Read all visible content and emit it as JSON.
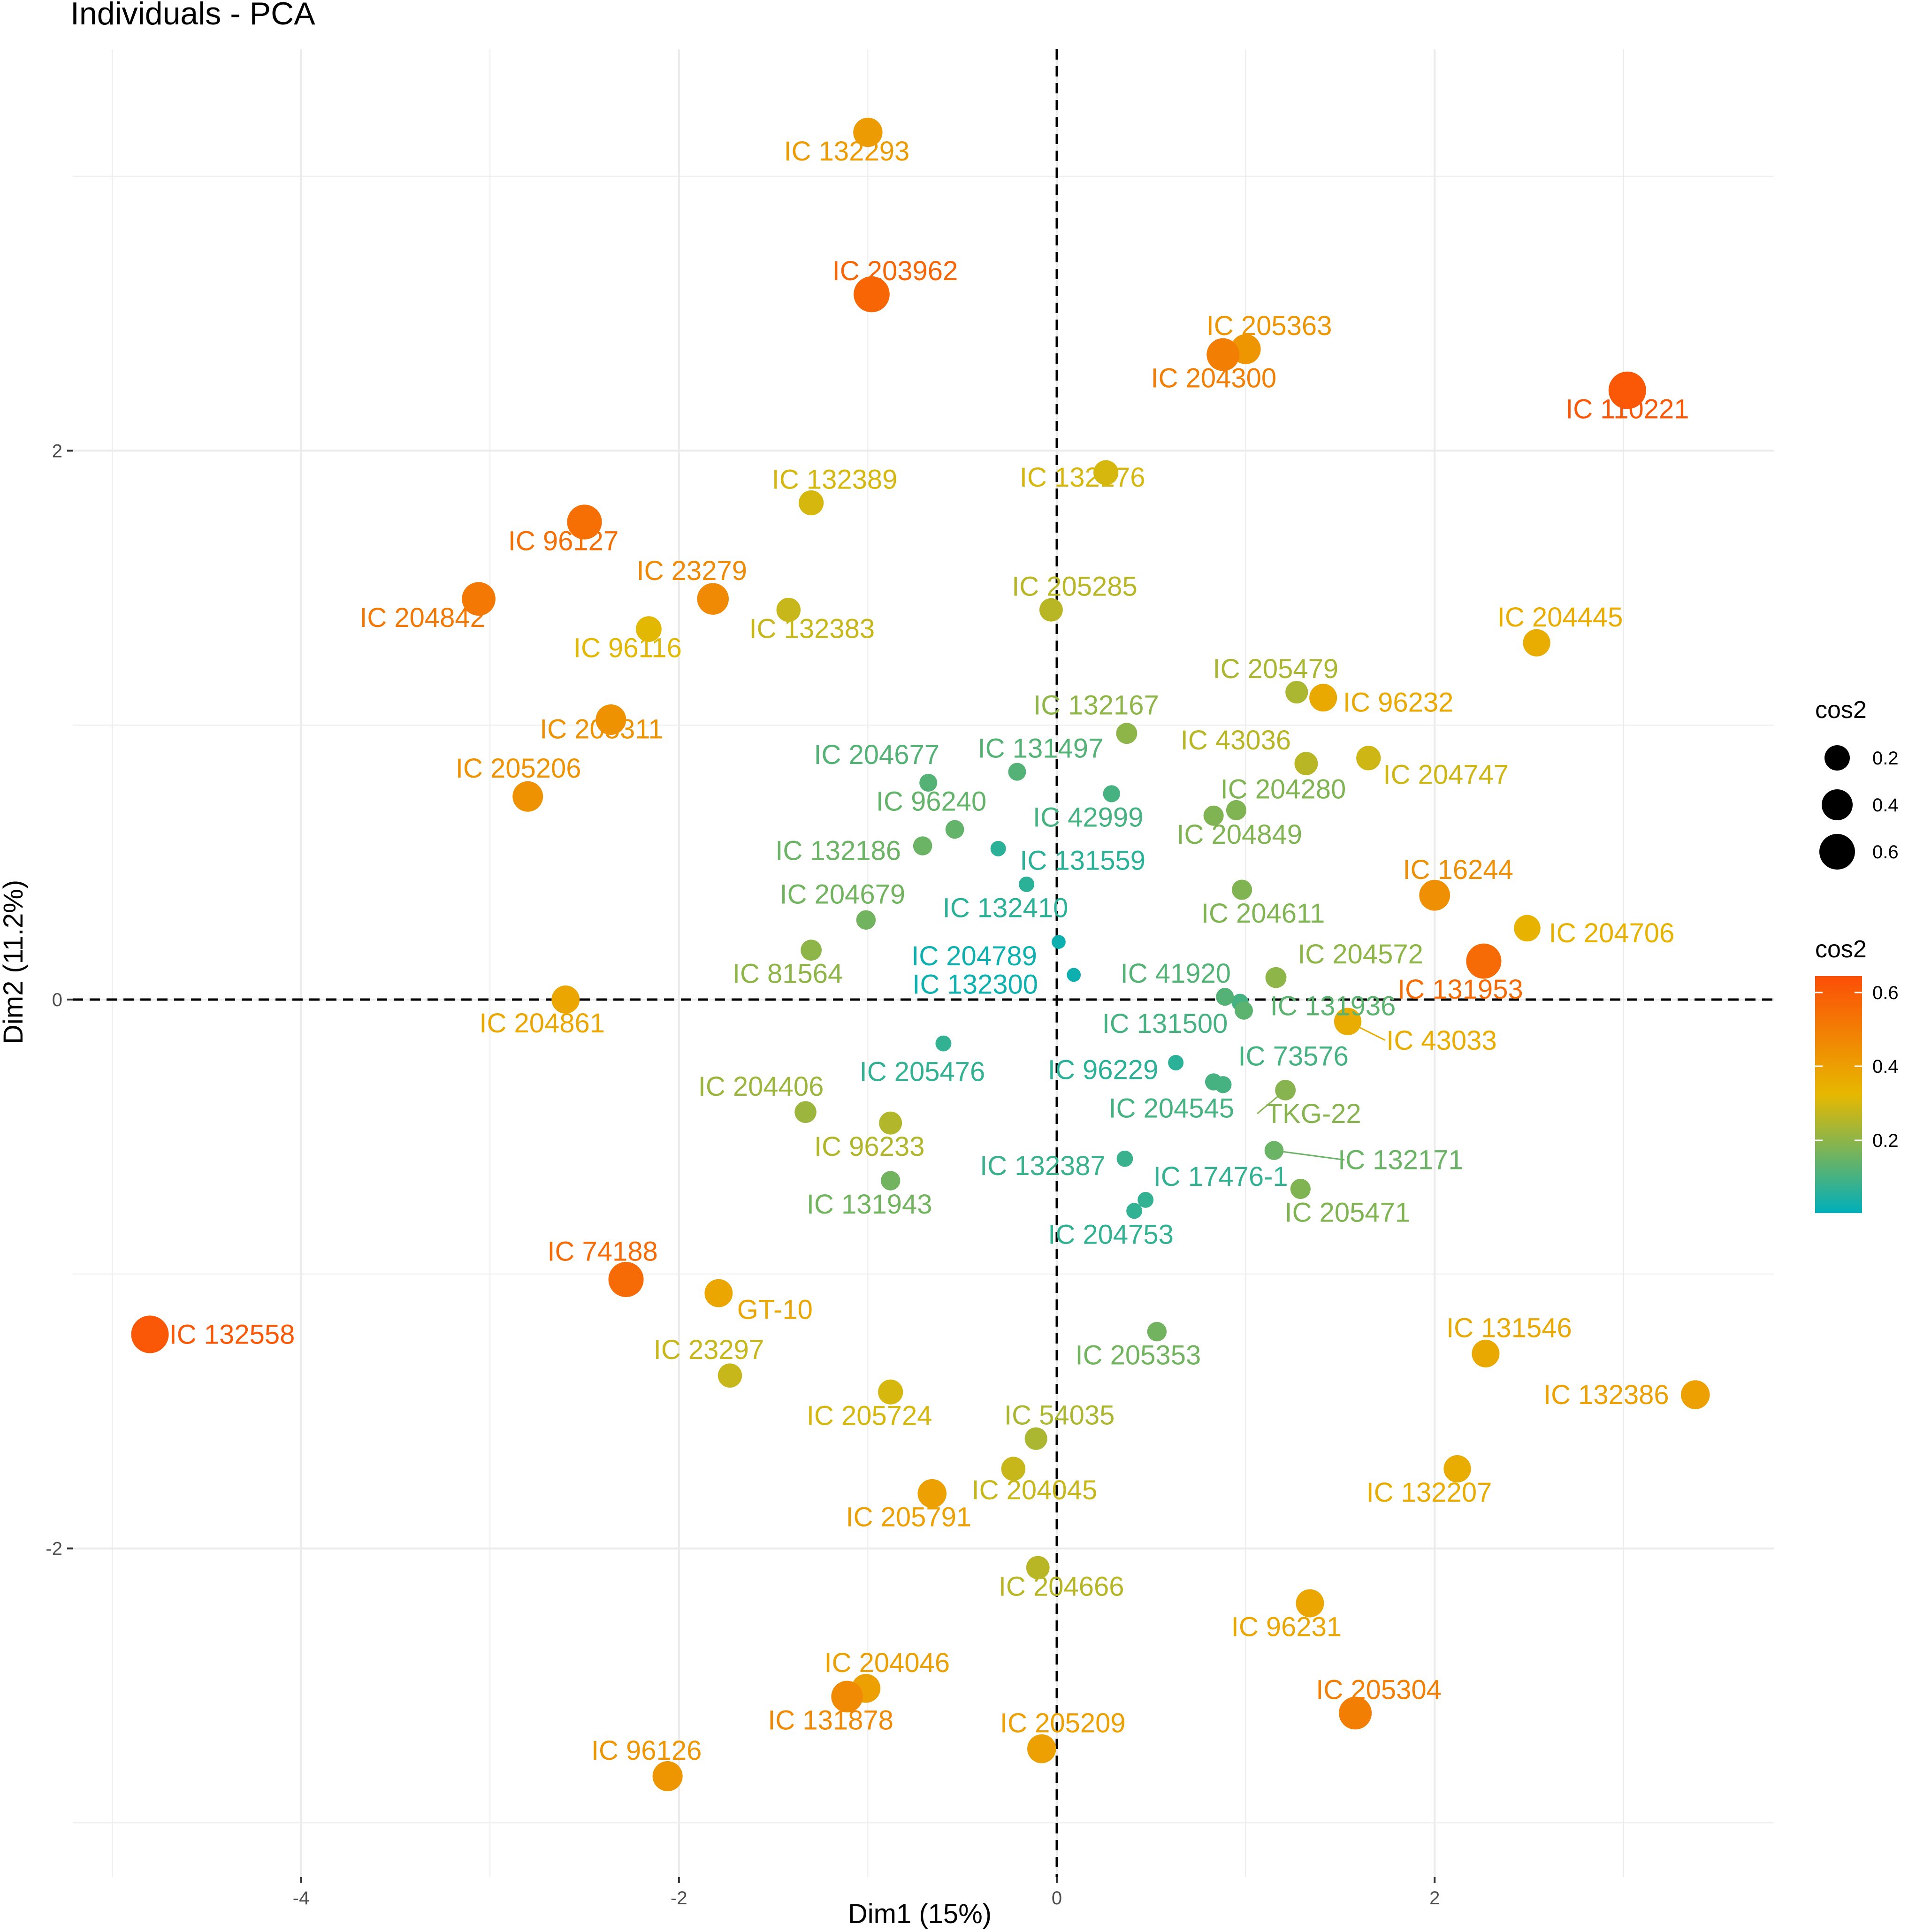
{
  "chart_data": {
    "type": "scatter",
    "title": "Individuals - PCA",
    "xlabel": "Dim1 (15%)",
    "ylabel": "Dim2 (11.2%)",
    "xlim": [
      -5.1,
      3.8
    ],
    "ylim": [
      -3.1,
      3.5
    ],
    "xticks": [
      -4,
      -2,
      0,
      2
    ],
    "yticks": [
      -2,
      0,
      2
    ],
    "grid": true,
    "reference_lines": {
      "x": 0,
      "y": 0,
      "style": "dashed"
    },
    "color_scale": {
      "variable": "cos2",
      "low": "#00AFBB",
      "mid": "#E7B800",
      "high": "#FC4E07",
      "range": [
        0,
        0.65
      ]
    },
    "legend": {
      "position": "right",
      "size_title": "cos2",
      "size_breaks": [
        "0.2",
        "0.4",
        "0.6"
      ],
      "color_title": "cos2",
      "color_breaks": [
        "0.6",
        "0.4",
        "0.2"
      ]
    },
    "points": [
      {
        "label": "IC 132293",
        "x": -1.0,
        "y": 3.16,
        "cos2": 0.41
      },
      {
        "label": "IC 203962",
        "x": -0.98,
        "y": 2.57,
        "cos2": 0.58
      },
      {
        "label": "IC 205363",
        "x": 1.0,
        "y": 2.37,
        "cos2": 0.43
      },
      {
        "label": "IC 204300",
        "x": 0.88,
        "y": 2.35,
        "cos2": 0.5
      },
      {
        "label": "IC 110221",
        "x": 3.02,
        "y": 2.22,
        "cos2": 0.62
      },
      {
        "label": "IC 132176",
        "x": 0.26,
        "y": 1.92,
        "cos2": 0.3
      },
      {
        "label": "IC 132389",
        "x": -1.3,
        "y": 1.81,
        "cos2": 0.3
      },
      {
        "label": "IC 96127",
        "x": -2.5,
        "y": 1.74,
        "cos2": 0.55
      },
      {
        "label": "IC 23279",
        "x": -1.82,
        "y": 1.46,
        "cos2": 0.47
      },
      {
        "label": "IC 204842",
        "x": -3.06,
        "y": 1.46,
        "cos2": 0.52
      },
      {
        "label": "IC 132383",
        "x": -1.42,
        "y": 1.42,
        "cos2": 0.28
      },
      {
        "label": "IC 205285",
        "x": -0.03,
        "y": 1.42,
        "cos2": 0.26
      },
      {
        "label": "IC 96116",
        "x": -2.16,
        "y": 1.35,
        "cos2": 0.32
      },
      {
        "label": "IC 204445",
        "x": 2.54,
        "y": 1.3,
        "cos2": 0.36
      },
      {
        "label": "IC 205479",
        "x": 1.27,
        "y": 1.12,
        "cos2": 0.24
      },
      {
        "label": "IC 96232",
        "x": 1.41,
        "y": 1.1,
        "cos2": 0.37
      },
      {
        "label": "IC 205311",
        "x": -2.36,
        "y": 1.02,
        "cos2": 0.44
      },
      {
        "label": "IC 132167",
        "x": 0.37,
        "y": 0.97,
        "cos2": 0.2
      },
      {
        "label": "IC 131497",
        "x": -0.21,
        "y": 0.83,
        "cos2": 0.12
      },
      {
        "label": "IC 204677",
        "x": -0.68,
        "y": 0.79,
        "cos2": 0.12
      },
      {
        "label": "IC 43036",
        "x": 1.32,
        "y": 0.86,
        "cos2": 0.26
      },
      {
        "label": "IC 204747",
        "x": 1.65,
        "y": 0.88,
        "cos2": 0.29
      },
      {
        "label": "IC 205206",
        "x": -2.8,
        "y": 0.74,
        "cos2": 0.44
      },
      {
        "label": "IC 42999",
        "x": 0.29,
        "y": 0.75,
        "cos2": 0.1
      },
      {
        "label": "IC 204280",
        "x": 0.95,
        "y": 0.69,
        "cos2": 0.18
      },
      {
        "label": "IC 204849",
        "x": 0.83,
        "y": 0.67,
        "cos2": 0.18
      },
      {
        "label": "IC 96240",
        "x": -0.54,
        "y": 0.62,
        "cos2": 0.14
      },
      {
        "label": "IC 132186",
        "x": -0.71,
        "y": 0.56,
        "cos2": 0.15
      },
      {
        "label": "IC 131559",
        "x": -0.31,
        "y": 0.55,
        "cos2": 0.06
      },
      {
        "label": "IC 132410",
        "x": -0.16,
        "y": 0.42,
        "cos2": 0.06
      },
      {
        "label": "IC 16244",
        "x": 2.0,
        "y": 0.38,
        "cos2": 0.45
      },
      {
        "label": "IC 204611",
        "x": 0.98,
        "y": 0.4,
        "cos2": 0.18
      },
      {
        "label": "IC 204679",
        "x": -1.01,
        "y": 0.29,
        "cos2": 0.16
      },
      {
        "label": "IC 204706",
        "x": 2.49,
        "y": 0.26,
        "cos2": 0.34
      },
      {
        "label": "IC 204789",
        "x": 0.01,
        "y": 0.21,
        "cos2": 0.02
      },
      {
        "label": "IC 81564",
        "x": -1.3,
        "y": 0.18,
        "cos2": 0.2
      },
      {
        "label": "IC 131953",
        "x": 2.26,
        "y": 0.14,
        "cos2": 0.56
      },
      {
        "label": "IC 132300",
        "x": 0.09,
        "y": 0.09,
        "cos2": 0.02
      },
      {
        "label": "IC 41920",
        "x": 0.89,
        "y": 0.01,
        "cos2": 0.12
      },
      {
        "label": "IC 204572",
        "x": 1.16,
        "y": 0.08,
        "cos2": 0.2
      },
      {
        "label": "IC 131936",
        "x": 0.99,
        "y": -0.04,
        "cos2": 0.13
      },
      {
        "label": "IC 204861",
        "x": -2.6,
        "y": 0.0,
        "cos2": 0.38
      },
      {
        "label": "IC 43033",
        "x": 1.54,
        "y": -0.08,
        "cos2": 0.36
      },
      {
        "label": "IC 131500",
        "x": 0.97,
        "y": -0.01,
        "cos2": 0.1
      },
      {
        "label": "IC 205476",
        "x": -0.6,
        "y": -0.16,
        "cos2": 0.07
      },
      {
        "label": "IC 96229",
        "x": 0.63,
        "y": -0.23,
        "cos2": 0.06
      },
      {
        "label": "IC 73576",
        "x": 0.83,
        "y": -0.3,
        "cos2": 0.1
      },
      {
        "label": "IC 204545",
        "x": 0.88,
        "y": -0.31,
        "cos2": 0.1
      },
      {
        "label": "TKG-22",
        "x": 1.21,
        "y": -0.33,
        "cos2": 0.19
      },
      {
        "label": "IC 204406",
        "x": -1.33,
        "y": -0.41,
        "cos2": 0.22
      },
      {
        "label": "IC 96233",
        "x": -0.88,
        "y": -0.45,
        "cos2": 0.25
      },
      {
        "label": "IC 132387",
        "x": 0.36,
        "y": -0.58,
        "cos2": 0.08
      },
      {
        "label": "IC 132171",
        "x": 1.15,
        "y": -0.55,
        "cos2": 0.15
      },
      {
        "label": "IC 17476-1",
        "x": 0.47,
        "y": -0.73,
        "cos2": 0.07
      },
      {
        "label": "IC 131943",
        "x": -0.88,
        "y": -0.66,
        "cos2": 0.16
      },
      {
        "label": "IC 205471",
        "x": 1.29,
        "y": -0.69,
        "cos2": 0.18
      },
      {
        "label": "IC 204753",
        "x": 0.41,
        "y": -0.77,
        "cos2": 0.07
      },
      {
        "label": "IC 74188",
        "x": -2.28,
        "y": -1.02,
        "cos2": 0.56
      },
      {
        "label": "GT-10",
        "x": -1.79,
        "y": -1.07,
        "cos2": 0.38
      },
      {
        "label": "IC 132558",
        "x": -4.8,
        "y": -1.22,
        "cos2": 0.62
      },
      {
        "label": "IC 205353",
        "x": 0.53,
        "y": -1.21,
        "cos2": 0.16
      },
      {
        "label": "IC 131546",
        "x": 2.27,
        "y": -1.29,
        "cos2": 0.37
      },
      {
        "label": "IC 23297",
        "x": -1.73,
        "y": -1.37,
        "cos2": 0.28
      },
      {
        "label": "IC 132386",
        "x": 3.38,
        "y": -1.44,
        "cos2": 0.4
      },
      {
        "label": "IC 205724",
        "x": -0.88,
        "y": -1.43,
        "cos2": 0.3
      },
      {
        "label": "IC 54035",
        "x": -0.11,
        "y": -1.6,
        "cos2": 0.24
      },
      {
        "label": "IC 132207",
        "x": 2.12,
        "y": -1.71,
        "cos2": 0.36
      },
      {
        "label": "IC 204045",
        "x": -0.23,
        "y": -1.71,
        "cos2": 0.28
      },
      {
        "label": "IC 205791",
        "x": -0.66,
        "y": -1.8,
        "cos2": 0.4
      },
      {
        "label": "IC 204666",
        "x": -0.1,
        "y": -2.07,
        "cos2": 0.26
      },
      {
        "label": "IC 96231",
        "x": 1.34,
        "y": -2.2,
        "cos2": 0.38
      },
      {
        "label": "IC 204046",
        "x": -1.01,
        "y": -2.51,
        "cos2": 0.4
      },
      {
        "label": "IC 131878",
        "x": -1.11,
        "y": -2.54,
        "cos2": 0.47
      },
      {
        "label": "IC 205304",
        "x": 1.58,
        "y": -2.6,
        "cos2": 0.5
      },
      {
        "label": "IC 205209",
        "x": -0.08,
        "y": -2.73,
        "cos2": 0.4
      },
      {
        "label": "IC 96126",
        "x": -2.06,
        "y": -2.83,
        "cos2": 0.43
      }
    ]
  }
}
